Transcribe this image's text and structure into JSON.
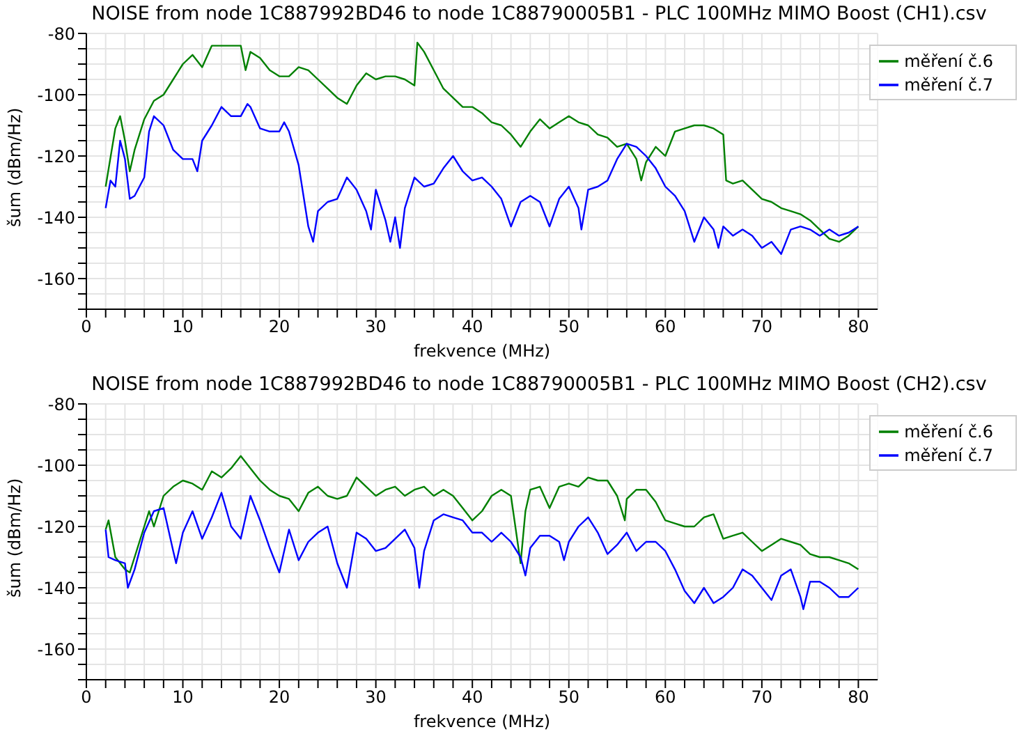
{
  "chart_data": [
    {
      "type": "line",
      "title": "NOISE from node 1C887992BD46 to node 1C88790005B1 - PLC 100MHz MIMO Boost (CH1).csv",
      "xlabel": "frekvence (MHz)",
      "ylabel": "šum (dBm/Hz)",
      "xlim": [
        0,
        82
      ],
      "ylim": [
        -170,
        -80
      ],
      "xticks": [
        0,
        {
          "value": 2,
          "label": null
        },
        {
          "value": 4,
          "label": null
        },
        {
          "value": 6,
          "label": null
        },
        {
          "value": 8,
          "label": null
        },
        10,
        {
          "value": 12,
          "label": null
        },
        {
          "value": 14,
          "label": null
        },
        {
          "value": 16,
          "label": null
        },
        {
          "value": 18,
          "label": null
        },
        20,
        {
          "value": 22,
          "label": null
        },
        {
          "value": 24,
          "label": null
        },
        {
          "value": 26,
          "label": null
        },
        {
          "value": 28,
          "label": null
        },
        30,
        {
          "value": 32,
          "label": null
        },
        {
          "value": 34,
          "label": null
        },
        {
          "value": 36,
          "label": null
        },
        {
          "value": 38,
          "label": null
        },
        40,
        {
          "value": 42,
          "label": null
        },
        {
          "value": 44,
          "label": null
        },
        {
          "value": 46,
          "label": null
        },
        {
          "value": 48,
          "label": null
        },
        50,
        {
          "value": 52,
          "label": null
        },
        {
          "value": 54,
          "label": null
        },
        {
          "value": 56,
          "label": null
        },
        {
          "value": 58,
          "label": null
        },
        60,
        {
          "value": 62,
          "label": null
        },
        {
          "value": 64,
          "label": null
        },
        {
          "value": 66,
          "label": null
        },
        {
          "value": 68,
          "label": null
        },
        70,
        {
          "value": 72,
          "label": null
        },
        {
          "value": 74,
          "label": null
        },
        {
          "value": 76,
          "label": null
        },
        {
          "value": 78,
          "label": null
        },
        80
      ],
      "yticks": [
        {
          "value": -170,
          "label": null
        },
        {
          "value": -165,
          "label": null
        },
        -160,
        {
          "value": -155,
          "label": null
        },
        {
          "value": -150,
          "label": null
        },
        {
          "value": -145,
          "label": null
        },
        -140,
        {
          "value": -135,
          "label": null
        },
        {
          "value": -130,
          "label": null
        },
        {
          "value": -125,
          "label": null
        },
        -120,
        {
          "value": -115,
          "label": null
        },
        {
          "value": -110,
          "label": null
        },
        {
          "value": -105,
          "label": null
        },
        -100,
        {
          "value": -95,
          "label": null
        },
        {
          "value": -90,
          "label": null
        },
        {
          "value": -85,
          "label": null
        },
        -80
      ],
      "grid": true,
      "legend": "top right",
      "series": [
        {
          "name": "měření č.6",
          "color": "#008000",
          "x": [
            2,
            3,
            3.5,
            4,
            4.5,
            5,
            6,
            7,
            8,
            9,
            10,
            11,
            12,
            13,
            14,
            15,
            16,
            16.5,
            17,
            18,
            19,
            20,
            21,
            22,
            23,
            24,
            25,
            26,
            27,
            28,
            29,
            30,
            31,
            32,
            33,
            34,
            34.3,
            35,
            36,
            37,
            38,
            39,
            40,
            41,
            42,
            43,
            44,
            45,
            46,
            47,
            48,
            49,
            50,
            51,
            52,
            53,
            54,
            55,
            56,
            57,
            57.5,
            58,
            59,
            60,
            61,
            62,
            63,
            64,
            65,
            66,
            66.3,
            67,
            68,
            69,
            70,
            71,
            72,
            73,
            74,
            75,
            76,
            77,
            78,
            79,
            80
          ],
          "values": [
            -130,
            -111,
            -107,
            -115,
            -125,
            -118,
            -108,
            -102,
            -100,
            -95,
            -90,
            -87,
            -91,
            -84,
            -84,
            -84,
            -84,
            -92,
            -86,
            -88,
            -92,
            -94,
            -94,
            -91,
            -92,
            -95,
            -98,
            -101,
            -103,
            -97,
            -93,
            -95,
            -94,
            -94,
            -95,
            -97,
            -83,
            -86,
            -92,
            -98,
            -101,
            -104,
            -104,
            -106,
            -109,
            -110,
            -113,
            -117,
            -112,
            -108,
            -111,
            -109,
            -107,
            -109,
            -110,
            -113,
            -114,
            -117,
            -116,
            -121,
            -128,
            -122,
            -117,
            -120,
            -112,
            -111,
            -110,
            -110,
            -111,
            -113,
            -128,
            -129,
            -128,
            -131,
            -134,
            -135,
            -137,
            -138,
            -139,
            -141,
            -144,
            -147,
            -148,
            -146,
            -143
          ]
        },
        {
          "name": "měření č.7",
          "color": "#0000ff",
          "x": [
            2,
            2.5,
            3,
            3.5,
            4,
            4.5,
            5,
            6,
            6.5,
            7,
            8,
            9,
            10,
            11,
            11.5,
            12,
            13,
            14,
            15,
            16,
            16.7,
            17,
            18,
            19,
            20,
            20.5,
            21,
            22,
            23,
            23.5,
            24,
            25,
            26,
            27,
            28,
            29,
            29.5,
            30,
            31,
            31.5,
            32,
            32.5,
            33,
            34,
            35,
            36,
            37,
            38,
            39,
            40,
            41,
            42,
            43,
            44,
            45,
            46,
            47,
            48,
            49,
            50,
            51,
            51.3,
            52,
            53,
            54,
            55,
            56,
            57,
            58,
            59,
            60,
            61,
            62,
            63,
            64,
            65,
            65.5,
            66,
            67,
            68,
            69,
            70,
            71,
            72,
            73,
            74,
            75,
            76,
            77,
            78,
            79,
            80
          ],
          "values": [
            -137,
            -128,
            -130,
            -115,
            -121,
            -134,
            -133,
            -127,
            -112,
            -107,
            -110,
            -118,
            -121,
            -121,
            -125,
            -115,
            -110,
            -104,
            -107,
            -107,
            -103,
            -104,
            -111,
            -112,
            -112,
            -109,
            -112,
            -123,
            -143,
            -148,
            -138,
            -135,
            -134,
            -127,
            -131,
            -138,
            -144,
            -131,
            -141,
            -148,
            -140,
            -150,
            -137,
            -127,
            -130,
            -129,
            -124,
            -120,
            -125,
            -128,
            -127,
            -130,
            -134,
            -143,
            -135,
            -133,
            -135,
            -143,
            -134,
            -130,
            -137,
            -144,
            -131,
            -130,
            -128,
            -121,
            -116,
            -117,
            -120,
            -124,
            -130,
            -133,
            -138,
            -148,
            -140,
            -144,
            -150,
            -143,
            -146,
            -144,
            -146,
            -150,
            -148,
            -152,
            -144,
            -143,
            -144,
            -146,
            -144,
            -146,
            -145,
            -143
          ]
        }
      ]
    },
    {
      "type": "line",
      "title": "NOISE from node 1C887992BD46 to node 1C88790005B1 - PLC 100MHz MIMO Boost (CH2).csv",
      "xlabel": "frekvence (MHz)",
      "ylabel": "šum (dBm/Hz)",
      "xlim": [
        0,
        82
      ],
      "ylim": [
        -170,
        -80
      ],
      "xticks": [
        0,
        {
          "value": 2,
          "label": null
        },
        {
          "value": 4,
          "label": null
        },
        {
          "value": 6,
          "label": null
        },
        {
          "value": 8,
          "label": null
        },
        10,
        {
          "value": 12,
          "label": null
        },
        {
          "value": 14,
          "label": null
        },
        {
          "value": 16,
          "label": null
        },
        {
          "value": 18,
          "label": null
        },
        20,
        {
          "value": 22,
          "label": null
        },
        {
          "value": 24,
          "label": null
        },
        {
          "value": 26,
          "label": null
        },
        {
          "value": 28,
          "label": null
        },
        30,
        {
          "value": 32,
          "label": null
        },
        {
          "value": 34,
          "label": null
        },
        {
          "value": 36,
          "label": null
        },
        {
          "value": 38,
          "label": null
        },
        40,
        {
          "value": 42,
          "label": null
        },
        {
          "value": 44,
          "label": null
        },
        {
          "value": 46,
          "label": null
        },
        {
          "value": 48,
          "label": null
        },
        50,
        {
          "value": 52,
          "label": null
        },
        {
          "value": 54,
          "label": null
        },
        {
          "value": 56,
          "label": null
        },
        {
          "value": 58,
          "label": null
        },
        60,
        {
          "value": 62,
          "label": null
        },
        {
          "value": 64,
          "label": null
        },
        {
          "value": 66,
          "label": null
        },
        {
          "value": 68,
          "label": null
        },
        70,
        {
          "value": 72,
          "label": null
        },
        {
          "value": 74,
          "label": null
        },
        {
          "value": 76,
          "label": null
        },
        {
          "value": 78,
          "label": null
        },
        80
      ],
      "yticks": [
        {
          "value": -170,
          "label": null
        },
        {
          "value": -165,
          "label": null
        },
        -160,
        {
          "value": -155,
          "label": null
        },
        {
          "value": -150,
          "label": null
        },
        {
          "value": -145,
          "label": null
        },
        -140,
        {
          "value": -135,
          "label": null
        },
        {
          "value": -130,
          "label": null
        },
        {
          "value": -125,
          "label": null
        },
        -120,
        {
          "value": -115,
          "label": null
        },
        {
          "value": -110,
          "label": null
        },
        {
          "value": -105,
          "label": null
        },
        -100,
        {
          "value": -95,
          "label": null
        },
        {
          "value": -90,
          "label": null
        },
        {
          "value": -85,
          "label": null
        },
        -80
      ],
      "grid": true,
      "legend": "top right",
      "series": [
        {
          "name": "měření č.6",
          "color": "#008000",
          "x": [
            2,
            2.3,
            3,
            4,
            4.5,
            5,
            6,
            6.5,
            7,
            8,
            9,
            10,
            11,
            12,
            13,
            14,
            15,
            16,
            17,
            18,
            19,
            20,
            21,
            22,
            23,
            24,
            25,
            26,
            27,
            28,
            29,
            30,
            31,
            32,
            33,
            34,
            35,
            36,
            37,
            38,
            39,
            40,
            41,
            42,
            43,
            44,
            45,
            45.5,
            46,
            47,
            48,
            49,
            50,
            51,
            52,
            53,
            54,
            55,
            55.8,
            56,
            57,
            58,
            59,
            60,
            61,
            62,
            63,
            64,
            65,
            66,
            67,
            68,
            69,
            70,
            71,
            72,
            73,
            74,
            75,
            76,
            77,
            78,
            79,
            80
          ],
          "values": [
            -121,
            -118,
            -130,
            -134,
            -135,
            -130,
            -120,
            -115,
            -120,
            -110,
            -107,
            -105,
            -106,
            -108,
            -102,
            -104,
            -101,
            -97,
            -101,
            -105,
            -108,
            -110,
            -111,
            -115,
            -109,
            -107,
            -110,
            -111,
            -110,
            -104,
            -107,
            -110,
            -108,
            -107,
            -110,
            -108,
            -107,
            -110,
            -108,
            -110,
            -114,
            -118,
            -115,
            -110,
            -108,
            -110,
            -132,
            -115,
            -108,
            -107,
            -114,
            -107,
            -106,
            -107,
            -104,
            -105,
            -105,
            -110,
            -118,
            -111,
            -108,
            -108,
            -112,
            -118,
            -119,
            -120,
            -120,
            -117,
            -116,
            -124,
            -123,
            -122,
            -125,
            -128,
            -126,
            -124,
            -125,
            -126,
            -129,
            -130,
            -130,
            -131,
            -132,
            -134
          ]
        },
        {
          "name": "měření č.7",
          "color": "#0000ff",
          "x": [
            2,
            2.3,
            3,
            4,
            4.3,
            5,
            6,
            7,
            8,
            9,
            9.3,
            10,
            11,
            12,
            13,
            14,
            15,
            16,
            17,
            18,
            19,
            20,
            21,
            22,
            23,
            24,
            25,
            26,
            27,
            28,
            29,
            30,
            31,
            32,
            33,
            34,
            34.5,
            35,
            36,
            37,
            38,
            39,
            40,
            41,
            42,
            43,
            44,
            45,
            45.5,
            46,
            47,
            48,
            49,
            49.5,
            50,
            51,
            52,
            53,
            54,
            55,
            56,
            57,
            58,
            59,
            60,
            61,
            62,
            63,
            64,
            65,
            66,
            67,
            68,
            69,
            70,
            71,
            72,
            73,
            74,
            74.3,
            75,
            76,
            77,
            78,
            79,
            80
          ],
          "values": [
            -121,
            -130,
            -131,
            -132,
            -140,
            -134,
            -122,
            -115,
            -114,
            -128,
            -132,
            -122,
            -115,
            -124,
            -117,
            -109,
            -120,
            -124,
            -110,
            -118,
            -127,
            -135,
            -121,
            -131,
            -125,
            -122,
            -120,
            -132,
            -140,
            -122,
            -124,
            -128,
            -127,
            -124,
            -121,
            -127,
            -140,
            -128,
            -118,
            -116,
            -117,
            -118,
            -122,
            -122,
            -125,
            -122,
            -125,
            -130,
            -136,
            -127,
            -123,
            -123,
            -125,
            -131,
            -125,
            -120,
            -117,
            -122,
            -129,
            -126,
            -122,
            -128,
            -125,
            -125,
            -128,
            -134,
            -141,
            -145,
            -140,
            -145,
            -143,
            -140,
            -134,
            -136,
            -140,
            -144,
            -136,
            -134,
            -143,
            -147,
            -138,
            -138,
            -140,
            -143,
            -143,
            -140
          ]
        }
      ]
    }
  ]
}
